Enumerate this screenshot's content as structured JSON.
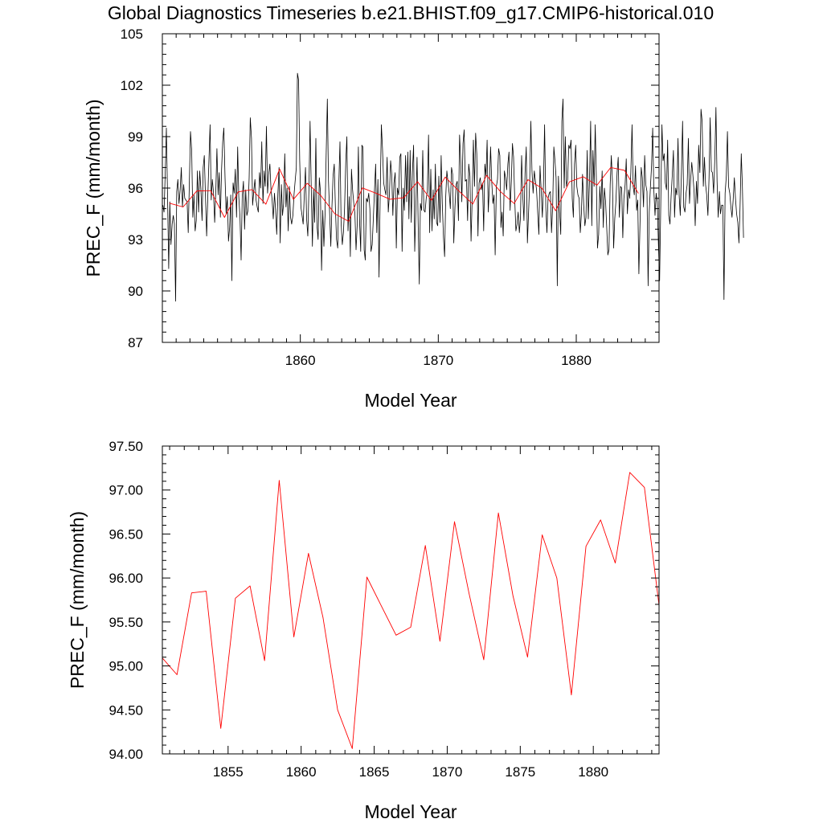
{
  "page_title": "Global Diagnostics Timeseries b.e21.BHIST.f09_g17.CMIP6-historical.010",
  "chart_data": [
    {
      "type": "line",
      "title": "",
      "xlabel": "Model Year",
      "ylabel": "PREC_F (mm/month)",
      "xlim": [
        1850.0,
        1886.0
      ],
      "ylim": [
        87,
        105
      ],
      "xticks": [
        1860,
        1870,
        1880
      ],
      "xtick_labels": [
        "1860",
        "1870",
        "1880"
      ],
      "yticks": [
        87,
        90,
        93,
        96,
        99,
        102,
        105
      ],
      "ytick_labels": [
        "87",
        "90",
        "93",
        "96",
        "99",
        "102",
        "105"
      ],
      "grid": false,
      "legend": "none",
      "series": [
        {
          "style": "monthly",
          "color": "#000000",
          "x_start": 1850.0417,
          "x_step": 0.08333,
          "values": [
            95.0,
            94.6,
            96.9,
            99.5,
            95.7,
            91.3,
            95.2,
            92.7,
            93.9,
            94.4,
            93.9,
            89.4,
            95.8,
            96.5,
            95.1,
            95.9,
            97.2,
            94.9,
            96.2,
            95.4,
            95.3,
            95.2,
            93.4,
            96.3,
            99.3,
            98.2,
            94.3,
            95.6,
            93.5,
            94.1,
            97.0,
            94.6,
            97.0,
            96.0,
            94.1,
            97.2,
            97.9,
            95.6,
            93.2,
            95.4,
            97.5,
            99.7,
            95.3,
            96.5,
            95.7,
            94.0,
            95.8,
            98.3,
            95.6,
            96.9,
            94.3,
            97.1,
            98.7,
            99.5,
            96.6,
            94.5,
            95.5,
            92.9,
            93.7,
            95.6,
            90.6,
            96.3,
            95.7,
            97.1,
            94.3,
            98.4,
            95.5,
            94.3,
            91.8,
            95.5,
            96.4,
            93.6,
            95.9,
            94.4,
            94.7,
            96.6,
            100.1,
            98.9,
            95.0,
            95.8,
            96.5,
            95.3,
            94.9,
            94.6,
            96.9,
            96.0,
            98.7,
            95.1,
            97.0,
            96.1,
            99.6,
            95.7,
            96.8,
            97.4,
            95.9,
            95.3,
            94.2,
            95.7,
            94.7,
            93.3,
            95.7,
            97.2,
            92.8,
            96.2,
            94.4,
            95.1,
            98.0,
            94.9,
            96.0,
            93.5,
            96.1,
            94.3,
            93.9,
            94.4,
            95.6,
            96.4,
            97.2,
            102.7,
            102.3,
            97.6,
            94.9,
            94.4,
            93.9,
            95.7,
            97.2,
            94.2,
            93.2,
            96.0,
            99.9,
            95.9,
            92.6,
            95.9,
            94.0,
            98.9,
            93.8,
            93.0,
            96.6,
            95.8,
            91.2,
            94.7,
            92.6,
            94.4,
            97.9,
            101.2,
            96.4,
            94.6,
            92.6,
            94.9,
            96.7,
            97.4,
            94.9,
            93.0,
            92.5,
            96.3,
            98.7,
            94.0,
            92.7,
            93.4,
            94.8,
            97.5,
            99.0,
            93.5,
            95.5,
            92.0,
            97.1,
            95.9,
            95.1,
            94.5,
            92.4,
            93.9,
            98.4,
            94.2,
            92.3,
            98.5,
            98.4,
            92.4,
            91.8,
            95.4,
            95.2,
            95.7,
            94.8,
            92.3,
            92.7,
            94.2,
            95.8,
            97.4,
            93.4,
            96.5,
            90.8,
            95.7,
            99.7,
            98.3,
            96.3,
            95.9,
            95.6,
            97.8,
            94.6,
            95.6,
            97.6,
            96.8,
            94.4,
            96.3,
            96.9,
            92.5,
            96.0,
            95.6,
            97.8,
            98.0,
            92.3,
            96.0,
            94.7,
            97.9,
            95.2,
            98.1,
            94.2,
            98.2,
            94.0,
            96.9,
            98.5,
            92.3,
            94.8,
            97.8,
            93.9,
            90.4,
            95.1,
            94.7,
            98.2,
            94.7,
            94.6,
            95.4,
            95.8,
            99.1,
            93.4,
            97.1,
            93.5,
            95.9,
            94.2,
            97.4,
            94.0,
            93.8,
            96.7,
            94.0,
            97.9,
            95.1,
            93.1,
            92.0,
            95.5,
            97.0,
            96.3,
            95.7,
            94.8,
            97.2,
            96.8,
            92.8,
            94.9,
            96.2,
            96.4,
            94.1,
            99.1,
            97.6,
            95.2,
            98.6,
            99.4,
            96.4,
            96.5,
            94.1,
            97.4,
            96.7,
            92.9,
            95.4,
            98.8,
            96.1,
            99.2,
            98.0,
            93.2,
            96.3,
            96.6,
            95.9,
            96.3,
            93.5,
            97.4,
            96.7,
            98.8,
            94.6,
            96.2,
            98.4,
            96.4,
            95.1,
            95.6,
            92.1,
            96.1,
            96.5,
            98.3,
            97.9,
            93.7,
            94.6,
            93.2,
            97.0,
            96.6,
            95.9,
            97.4,
            98.1,
            94.7,
            96.4,
            98.6,
            97.8,
            95.4,
            93.5,
            93.9,
            94.6,
            93.4,
            94.3,
            97.9,
            95.5,
            94.1,
            96.9,
            98.4,
            92.8,
            94.5,
            96.3,
            99.9,
            97.0,
            95.7,
            97.0,
            96.4,
            95.9,
            94.5,
            93.3,
            97.3,
            95.9,
            94.3,
            96.2,
            99.7,
            94.9,
            93.4,
            95.4,
            95.7,
            95.8,
            93.4,
            95.0,
            98.4,
            97.6,
            96.6,
            90.3,
            96.7,
            94.7,
            93.3,
            99.9,
            101.2,
            96.0,
            99.0,
            96.1,
            96.5,
            98.5,
            98.3,
            98.8,
            95.4,
            94.3,
            97.4,
            98.5,
            96.1,
            95.6,
            95.4,
            93.4,
            94.5,
            96.8,
            95.0,
            93.8,
            94.3,
            98.2,
            94.2,
            96.3,
            99.9,
            93.8,
            98.2,
            96.1,
            99.7,
            96.5,
            92.5,
            93.3,
            96.1,
            94.8,
            97.0,
            93.7,
            96.0,
            95.2,
            93.7,
            92.1,
            92.4,
            96.2,
            97.9,
            96.4,
            92.5,
            94.2,
            95.2,
            96.9,
            97.8,
            94.3,
            96.1,
            96.0,
            93.1,
            95.4,
            96.2,
            97.7,
            94.5,
            95.9,
            95.4,
            96.9,
            99.7,
            96.1,
            95.6,
            97.3,
            94.7,
            95.3,
            91.0,
            94.1,
            97.2,
            96.6,
            94.9,
            97.9,
            96.2,
            95.8,
            90.3,
            94.6,
            96.0,
            97.3,
            99.5,
            95.9,
            94.4,
            95.7,
            95.2,
            92.6,
            90.6,
            94.9,
            99.7,
            97.6,
            98.0,
            96.3,
            95.9,
            98.8,
            94.4,
            93.9,
            95.5,
            96.7,
            98.2,
            94.3,
            96.0,
            95.6,
            98.9,
            95.6,
            94.4,
            97.0,
            99.9,
            94.9,
            94.6,
            95.7,
            96.2,
            98.9,
            95.1,
            96.5,
            97.5,
            96.7,
            95.8,
            93.8,
            96.4,
            95.1,
            98.5,
            96.9,
            100.6,
            99.9,
            96.1,
            97.8,
            96.2,
            95.6,
            94.4,
            96.6,
            100.1,
            97.0,
            96.9,
            95.7,
            97.7,
            100.7,
            96.4,
            94.3,
            95.8,
            94.5,
            95.0,
            95.0,
            89.5,
            95.7,
            96.7,
            99.3,
            96.1,
            95.7,
            94.9,
            94.3,
            95.3,
            96.6,
            95.4,
            94.5,
            94.0,
            92.8,
            94.9,
            98.0,
            96.1,
            93.1
          ]
        },
        {
          "style": "annual",
          "color": "#ff0000",
          "x": [
            1850.5,
            1851.5,
            1852.5,
            1853.5,
            1854.5,
            1855.5,
            1856.5,
            1857.5,
            1858.5,
            1859.5,
            1860.5,
            1861.5,
            1862.5,
            1863.5,
            1864.5,
            1865.5,
            1866.5,
            1867.5,
            1868.5,
            1869.5,
            1870.5,
            1871.5,
            1872.5,
            1873.5,
            1874.5,
            1875.5,
            1876.5,
            1877.5,
            1878.5,
            1879.5,
            1880.5,
            1881.5,
            1882.5,
            1883.5,
            1884.5
          ],
          "values": [
            95.12,
            94.9,
            95.83,
            95.85,
            94.29,
            95.78,
            95.91,
            95.06,
            97.11,
            95.34,
            96.28,
            95.55,
            94.5,
            94.06,
            96.01,
            95.69,
            95.35,
            95.44,
            96.37,
            95.28,
            96.64,
            95.82,
            95.07,
            96.74,
            95.8,
            95.1,
            96.49,
            96.0,
            94.68,
            96.36,
            96.66,
            96.17,
            97.2,
            97.03,
            95.69
          ]
        }
      ]
    },
    {
      "type": "line",
      "title": "",
      "xlabel": "Model Year",
      "ylabel": "PREC_F (mm/month)",
      "xlim": [
        1850.5,
        1884.5
      ],
      "ylim": [
        94.0,
        97.5
      ],
      "xticks": [
        1855,
        1860,
        1865,
        1870,
        1875,
        1880
      ],
      "xtick_labels": [
        "1855",
        "1860",
        "1865",
        "1870",
        "1875",
        "1880"
      ],
      "yticks": [
        94.0,
        94.5,
        95.0,
        95.5,
        96.0,
        96.5,
        97.0,
        97.5
      ],
      "ytick_labels": [
        "94.00",
        "94.50",
        "95.00",
        "95.50",
        "96.00",
        "96.50",
        "97.00",
        "97.50"
      ],
      "grid": false,
      "legend": "none",
      "series": [
        {
          "style": "annual",
          "color": "#ff0000",
          "x": [
            1850.5,
            1851.5,
            1852.5,
            1853.5,
            1854.5,
            1855.5,
            1856.5,
            1857.5,
            1858.5,
            1859.5,
            1860.5,
            1861.5,
            1862.5,
            1863.5,
            1864.5,
            1865.5,
            1866.5,
            1867.5,
            1868.5,
            1869.5,
            1870.5,
            1871.5,
            1872.5,
            1873.5,
            1874.5,
            1875.5,
            1876.5,
            1877.5,
            1878.5,
            1879.5,
            1880.5,
            1881.5,
            1882.5,
            1883.5,
            1884.5
          ],
          "values": [
            95.09,
            94.9,
            95.83,
            95.85,
            94.29,
            95.77,
            95.91,
            95.06,
            97.11,
            95.33,
            96.28,
            95.55,
            94.5,
            94.06,
            96.01,
            95.68,
            95.35,
            95.44,
            96.37,
            95.28,
            96.64,
            95.82,
            95.07,
            96.74,
            95.8,
            95.1,
            96.49,
            96.0,
            94.67,
            96.36,
            96.66,
            96.17,
            97.2,
            97.03,
            95.69
          ]
        }
      ]
    }
  ]
}
